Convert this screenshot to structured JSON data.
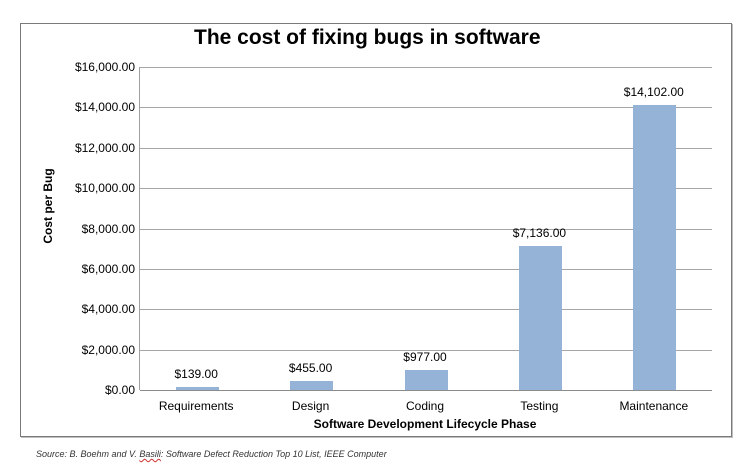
{
  "chart_data": {
    "type": "bar",
    "title": "The cost of fixing bugs in software",
    "xlabel": "Software Development Lifecycle Phase",
    "ylabel": "Cost per Bug",
    "categories": [
      "Requirements",
      "Design",
      "Coding",
      "Testing",
      "Maintenance"
    ],
    "values": [
      139,
      455,
      977,
      7136,
      14102
    ],
    "data_labels": [
      "$139.00",
      "$455.00",
      "$977.00",
      "$7,136.00",
      "$14,102.00"
    ],
    "ylim": [
      0,
      16000
    ],
    "yticks": [
      0,
      2000,
      4000,
      6000,
      8000,
      10000,
      12000,
      14000,
      16000
    ],
    "ytick_labels": [
      "$0.00",
      "$2,000.00",
      "$4,000.00",
      "$6,000.00",
      "$8,000.00",
      "$10,000.00",
      "$12,000.00",
      "$14,000.00",
      "$16,000.00"
    ],
    "grid": true,
    "legend": null,
    "bar_color": "#95b3d7"
  },
  "source": {
    "prefix": "Source: B. Boehm and V. ",
    "flagged_word": "Basili",
    "suffix": ": Software Defect Reduction Top 10 List, IEEE Computer"
  }
}
